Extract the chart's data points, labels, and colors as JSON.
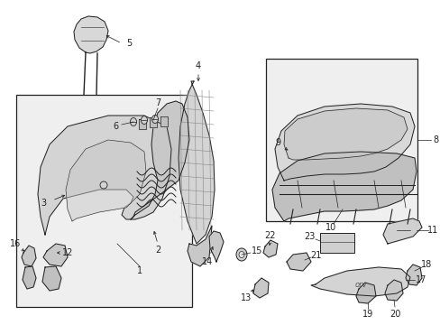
{
  "background_color": "#ffffff",
  "figsize": [
    4.89,
    3.6
  ],
  "dpi": 100,
  "line_color": "#222222",
  "fill_light": "#e8e8e8",
  "fill_mid": "#d0d0d0",
  "fill_dark": "#b8b8b8"
}
